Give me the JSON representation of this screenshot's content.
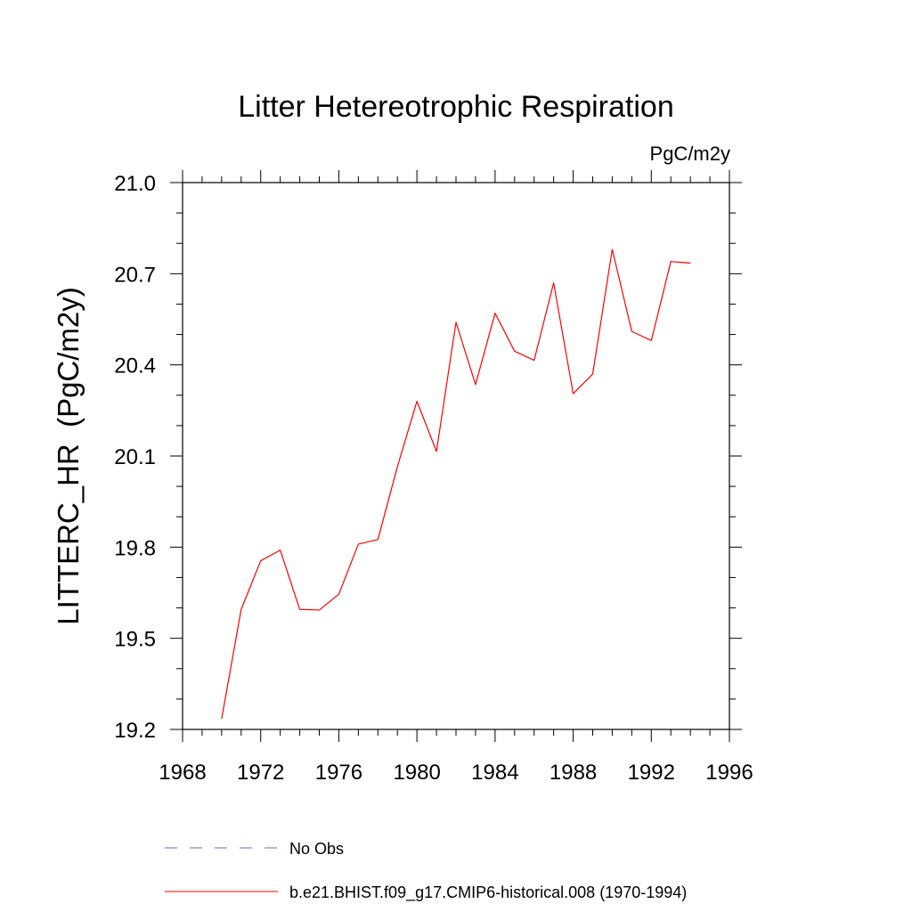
{
  "chart_data": {
    "type": "line",
    "title": "Litter Hetereotrophic Respiration",
    "units_label": "PgC/m2y",
    "xlabel": "",
    "ylabel": "LITTERC_HR  (PgC/m2y)",
    "xlim": [
      1968,
      1996
    ],
    "ylim": [
      19.2,
      21.0
    ],
    "x_ticks": [
      1968,
      1972,
      1976,
      1980,
      1984,
      1988,
      1992,
      1996
    ],
    "x_tick_labels": [
      "1968",
      "1972",
      "1976",
      "1980",
      "1984",
      "1988",
      "1992",
      "1996"
    ],
    "y_ticks": [
      19.2,
      19.5,
      19.8,
      20.1,
      20.4,
      20.7,
      21.0
    ],
    "y_tick_labels": [
      "19.2",
      "19.5",
      "19.8",
      "20.1",
      "20.4",
      "20.7",
      "21.0"
    ],
    "grid": false,
    "legend_position": "bottom",
    "series": [
      {
        "name": "b.e21.BHIST.f09_g17.CMIP6-historical.008 (1970-1994)",
        "color": "#ff0000",
        "line_style": "solid",
        "x": [
          1970,
          1971,
          1972,
          1973,
          1974,
          1975,
          1976,
          1977,
          1978,
          1979,
          1980,
          1981,
          1982,
          1983,
          1984,
          1985,
          1986,
          1987,
          1988,
          1989,
          1990,
          1991,
          1992,
          1993,
          1994
        ],
        "values": [
          19.235,
          19.595,
          19.755,
          19.79,
          19.595,
          19.593,
          19.645,
          19.81,
          19.825,
          20.065,
          20.28,
          20.115,
          20.54,
          20.335,
          20.57,
          20.445,
          20.415,
          20.67,
          20.305,
          20.37,
          20.78,
          20.51,
          20.48,
          20.74,
          20.735
        ]
      }
    ],
    "legend": [
      {
        "label": "No Obs",
        "color": "#6666cc",
        "line_style": "dashed"
      },
      {
        "label": "b.e21.BHIST.f09_g17.CMIP6-historical.008 (1970-1994)",
        "color": "#ff0000",
        "line_style": "solid"
      }
    ]
  }
}
